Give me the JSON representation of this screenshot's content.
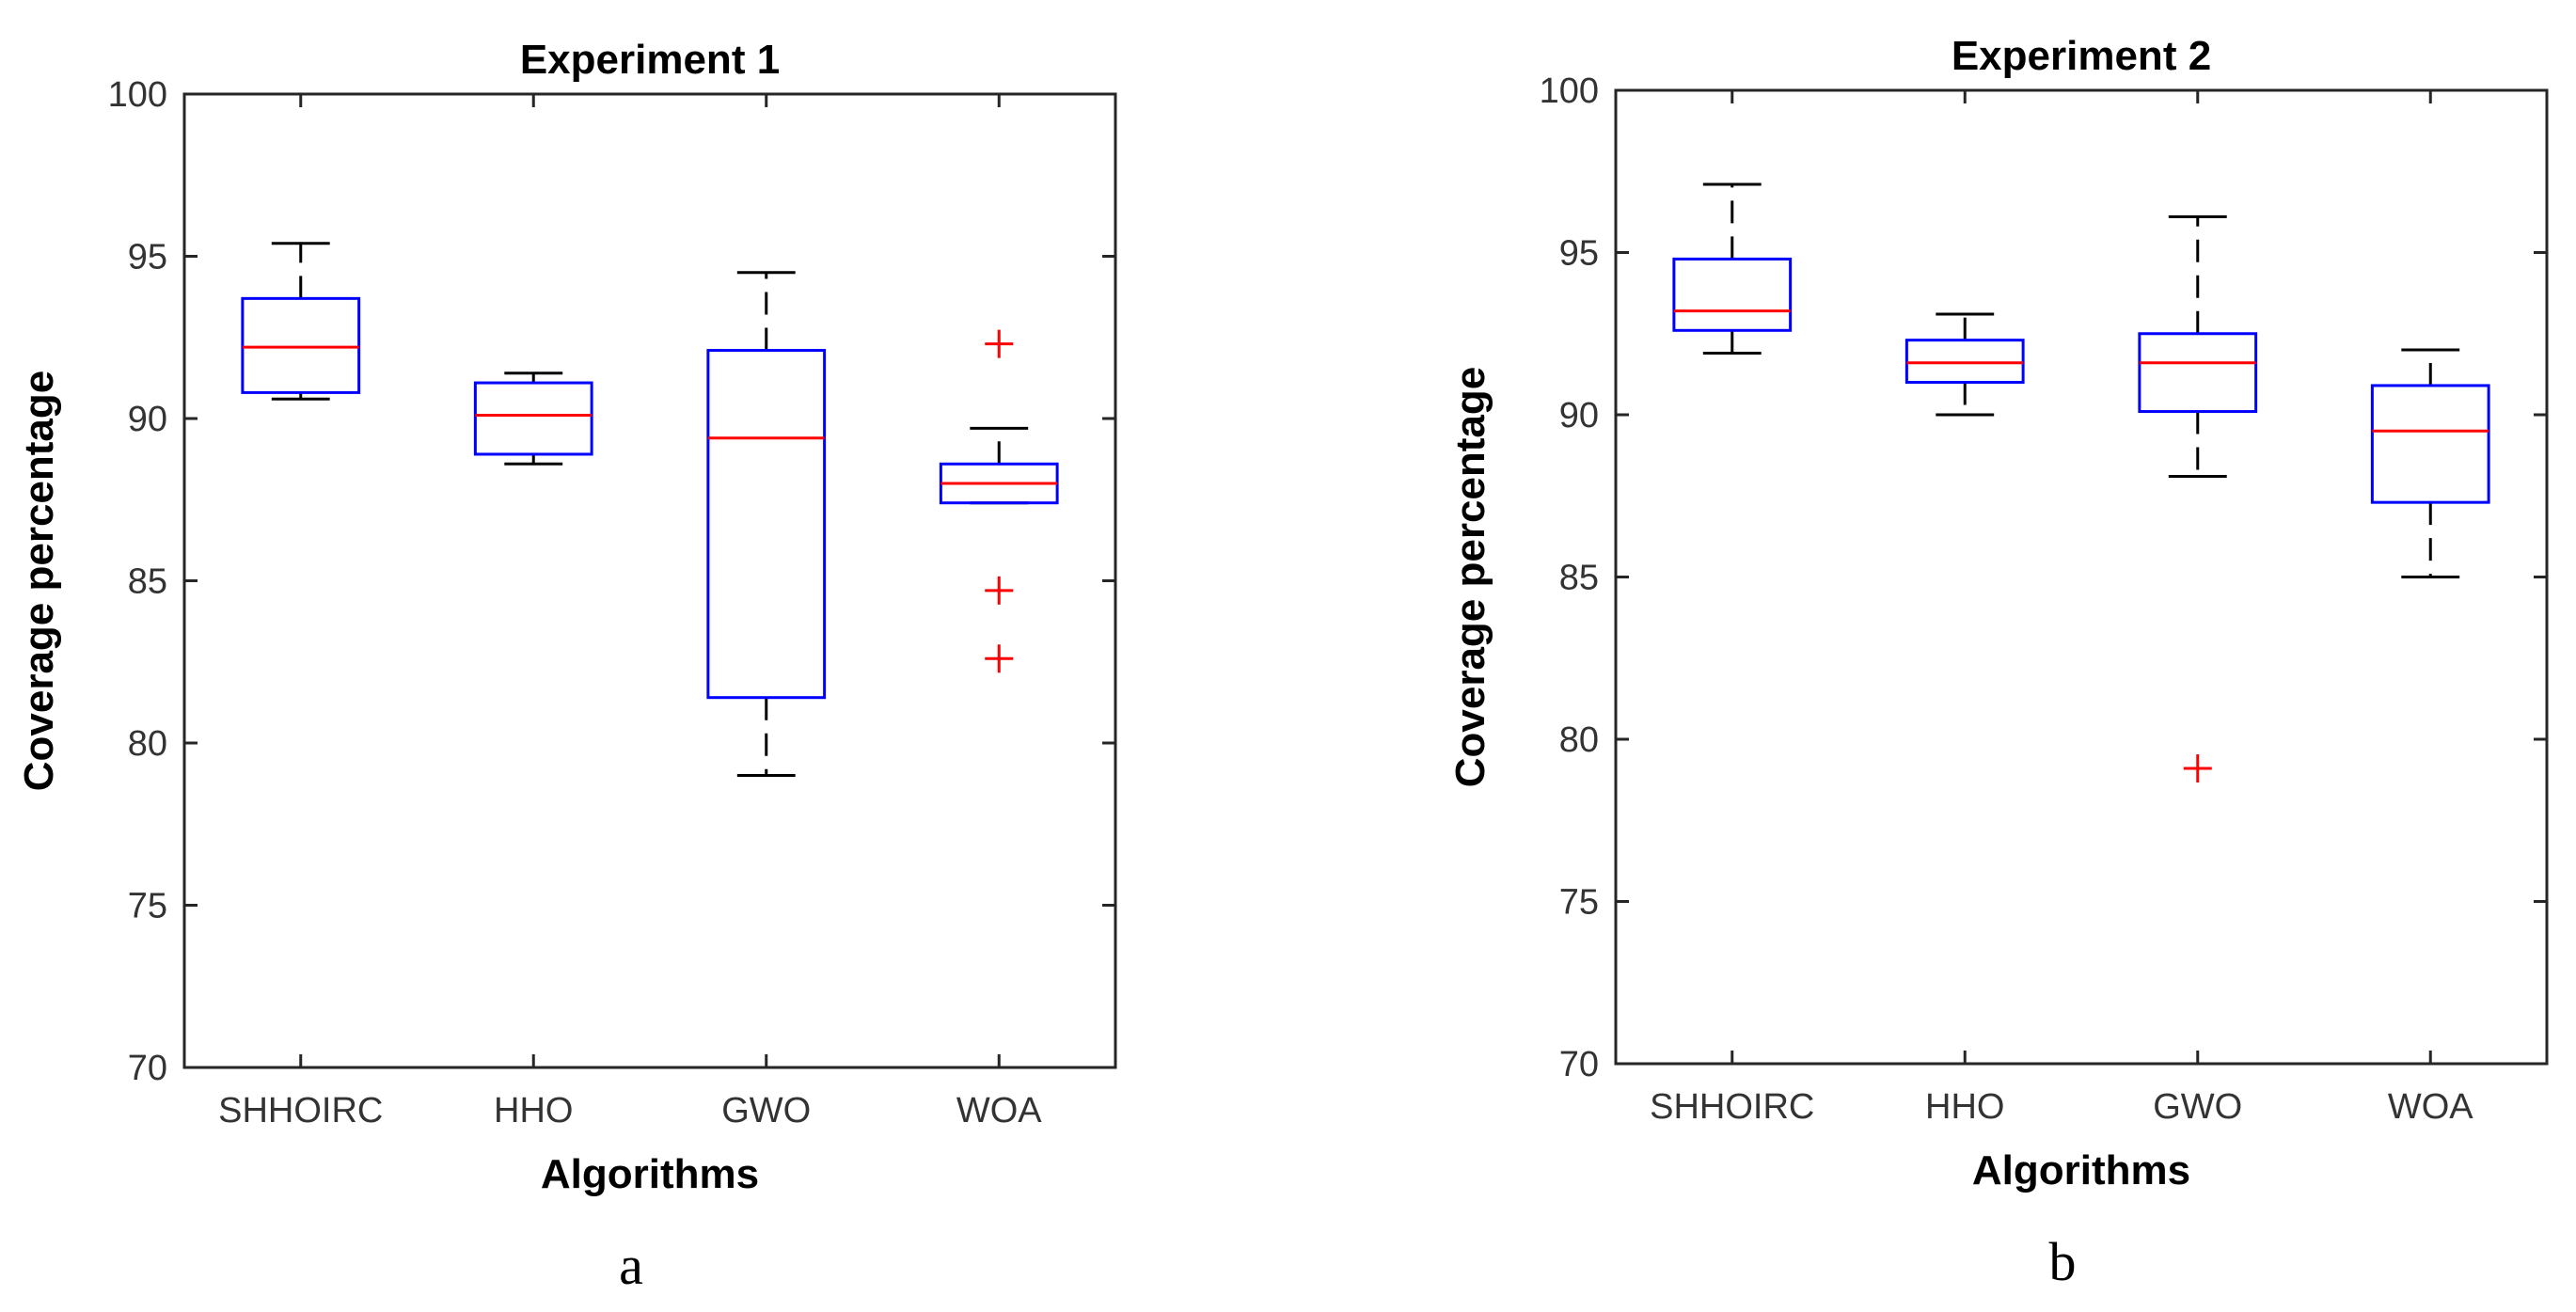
{
  "chart_data": [
    {
      "type": "boxplot",
      "panel_label": "a",
      "title": "Experiment 1",
      "xlabel": "Algorithms",
      "ylabel": "Coverage percentage",
      "ylim": [
        70,
        100
      ],
      "yticks": [
        70,
        75,
        80,
        85,
        90,
        95,
        100
      ],
      "categories": [
        "SHHOIRC",
        "HHO",
        "GWO",
        "WOA"
      ],
      "boxes": [
        {
          "name": "SHHOIRC",
          "whisker_low": 90.6,
          "q1": 90.8,
          "median": 92.2,
          "q3": 93.7,
          "whisker_high": 95.4,
          "outliers": []
        },
        {
          "name": "HHO",
          "whisker_low": 88.6,
          "q1": 88.9,
          "median": 90.1,
          "q3": 91.1,
          "whisker_high": 91.4,
          "outliers": []
        },
        {
          "name": "GWO",
          "whisker_low": 79.0,
          "q1": 81.4,
          "median": 89.4,
          "q3": 92.1,
          "whisker_high": 94.5,
          "outliers": []
        },
        {
          "name": "WOA",
          "whisker_low": 87.4,
          "q1": 87.4,
          "median": 88.0,
          "q3": 88.6,
          "whisker_high": 89.7,
          "outliers": [
            92.3,
            84.7,
            82.6
          ]
        }
      ]
    },
    {
      "type": "boxplot",
      "panel_label": "b",
      "title": "Experiment 2",
      "xlabel": "Algorithms",
      "ylabel": "Coverage percentage",
      "ylim": [
        70,
        100
      ],
      "yticks": [
        70,
        75,
        80,
        85,
        90,
        95,
        100
      ],
      "categories": [
        "SHHOIRC",
        "HHO",
        "GWO",
        "WOA"
      ],
      "boxes": [
        {
          "name": "SHHOIRC",
          "whisker_low": 91.9,
          "q1": 92.6,
          "median": 93.2,
          "q3": 94.8,
          "whisker_high": 97.1,
          "outliers": []
        },
        {
          "name": "HHO",
          "whisker_low": 90.0,
          "q1": 91.0,
          "median": 91.6,
          "q3": 92.3,
          "whisker_high": 93.1,
          "outliers": []
        },
        {
          "name": "GWO",
          "whisker_low": 88.1,
          "q1": 90.1,
          "median": 91.6,
          "q3": 92.5,
          "whisker_high": 96.1,
          "outliers": [
            79.1
          ]
        },
        {
          "name": "WOA",
          "whisker_low": 85.0,
          "q1": 87.3,
          "median": 89.5,
          "q3": 90.9,
          "whisker_high": 92.0,
          "outliers": []
        }
      ]
    }
  ]
}
